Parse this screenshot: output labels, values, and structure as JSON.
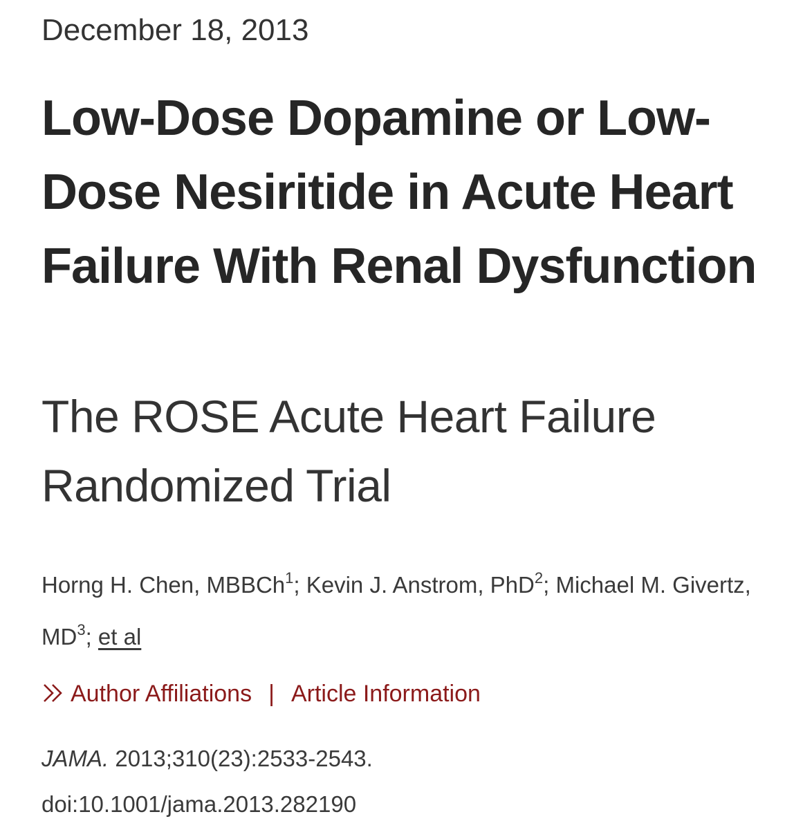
{
  "article": {
    "date": "December 18, 2013",
    "title": "Low-Dose Dopamine or Low-Dose Nesiritide in Acute Heart Failure With Renal Dysfunction",
    "subtitle": "The ROSE Acute Heart Failure Randomized Trial",
    "authors": [
      {
        "name": "Horng H. Chen, MBBCh",
        "sup": "1",
        "sep": "; "
      },
      {
        "name": "Kevin J. Anstrom, PhD",
        "sup": "2",
        "sep": "; "
      },
      {
        "name": "Michael M. Givertz, MD",
        "sup": "3",
        "sep": "; "
      }
    ],
    "et_al": "et al",
    "links": {
      "affiliations": "Author Affiliations",
      "separator": "|",
      "information": "Article Information",
      "chevron_icon": "double-chevron-right-icon"
    },
    "citation": {
      "journal": "JAMA.",
      "reference": " 2013;310(23):2533-2543.",
      "doi": "doi:10.1001/jama.2013.282190"
    }
  },
  "colors": {
    "link": "#8b1a1a",
    "text": "#2b2b2b"
  }
}
